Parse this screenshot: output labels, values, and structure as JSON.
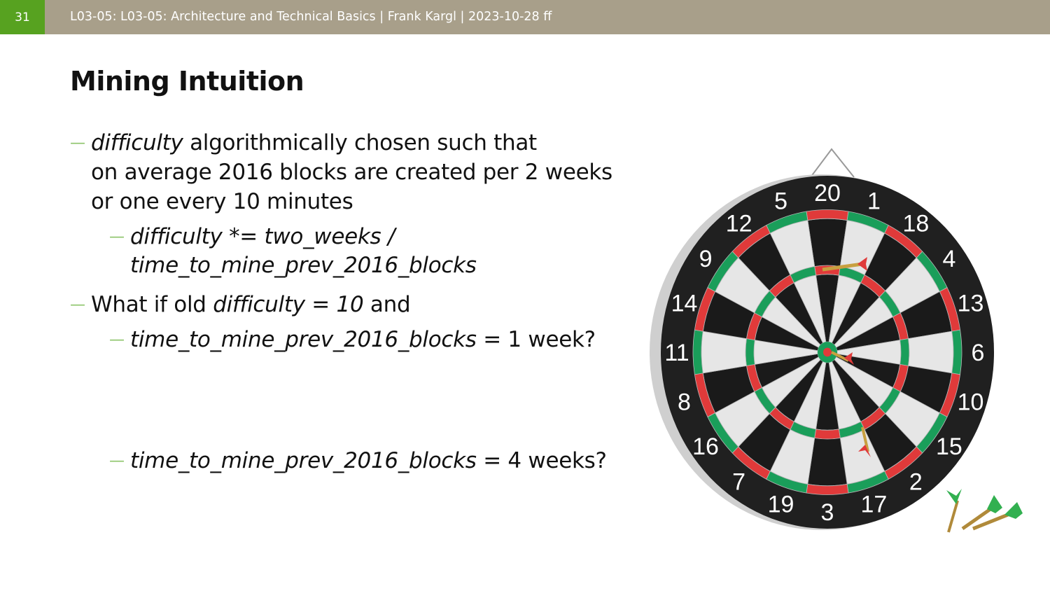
{
  "header": {
    "slide_number": "31",
    "text": "L03-05: L03-05: Architecture and Technical Basics | Frank Kargl | 2023-10-28 ff"
  },
  "title": "Mining Intuition",
  "bullets": {
    "b1_em": "difficulty",
    "b1_text": " algorithmically chosen such that",
    "b1_line2": "on average 2016 blocks are created per 2 weeks",
    "b1_line3": "or one every 10 minutes",
    "b1_sub_line1": "difficulty *= two_weeks /",
    "b1_sub_line2": "time_to_mine_prev_2016_blocks",
    "b2_text1": "What if old ",
    "b2_em": "difficulty = 10",
    "b2_text2": " and",
    "b2_sub1_em": "time_to_mine_prev_2016_blocks",
    "b2_sub1_text": " = 1 week?",
    "b2_sub2_em": "time_to_mine_prev_2016_blocks",
    "b2_sub2_text": " = 4 weeks?"
  },
  "dartboard": {
    "numbers": [
      "20",
      "1",
      "18",
      "4",
      "13",
      "6",
      "10",
      "15",
      "2",
      "17",
      "3",
      "19",
      "7",
      "16",
      "8",
      "11",
      "14",
      "9",
      "12",
      "5"
    ],
    "colors": {
      "red": "#e03a3a",
      "green": "#1a9e5a",
      "black": "#1a1a1a",
      "white": "#e6e6e6"
    }
  },
  "colors": {
    "header_bg": "#a89f8a",
    "slide_num_bg": "#57a220",
    "dash": "#8dc46a"
  }
}
